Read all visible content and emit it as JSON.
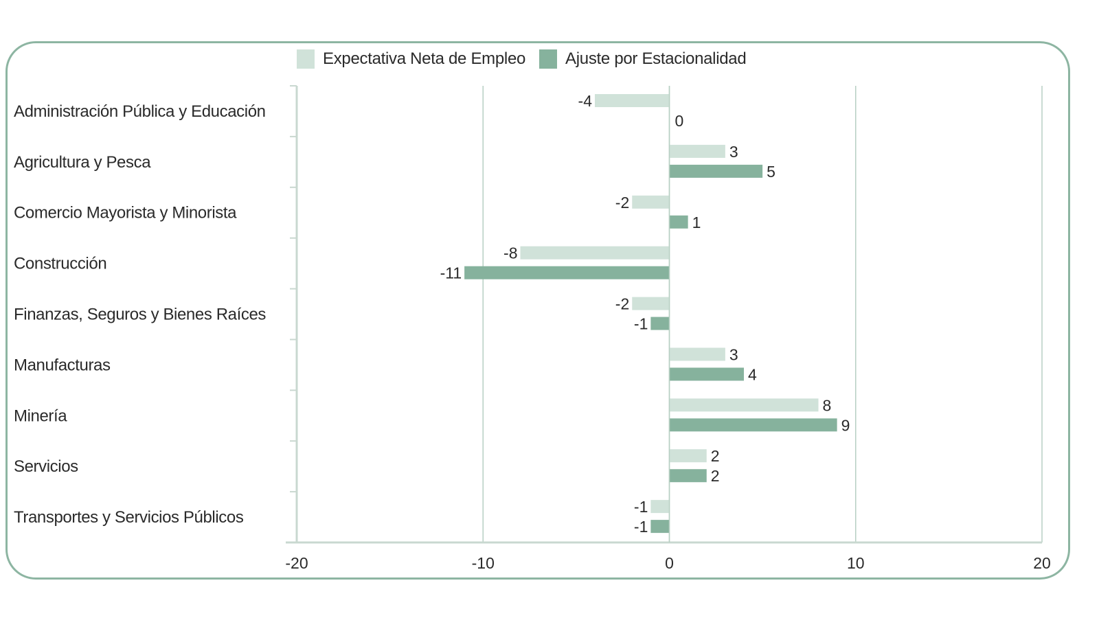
{
  "chart_data": {
    "type": "bar",
    "orientation": "horizontal",
    "title": "",
    "xlabel": "",
    "ylabel": "",
    "xlim": [
      -20,
      20
    ],
    "xticks": [
      -20,
      -10,
      0,
      10,
      20
    ],
    "grid": true,
    "legend_position": "top-center",
    "categories": [
      "Administración Pública y Educación",
      "Agricultura y Pesca",
      "Comercio Mayorista y Minorista",
      "Construcción",
      "Finanzas, Seguros y Bienes Raíces",
      "Manufacturas",
      "Minería",
      "Servicios",
      "Transportes y Servicios Públicos"
    ],
    "series": [
      {
        "name": "Expectativa Neta de Empleo",
        "color": "#d0e2d9",
        "values": [
          -4,
          3,
          -2,
          -8,
          -2,
          3,
          8,
          2,
          -1
        ]
      },
      {
        "name": "Ajuste por Estacionalidad",
        "color": "#86b29d",
        "values": [
          0,
          5,
          1,
          -11,
          -1,
          4,
          9,
          2,
          -1
        ]
      }
    ]
  },
  "colors": {
    "frame": "#8db5a2",
    "gridline": "#b7cfc3",
    "axis": "#c9d8d0",
    "text": "#2a2a2a"
  }
}
